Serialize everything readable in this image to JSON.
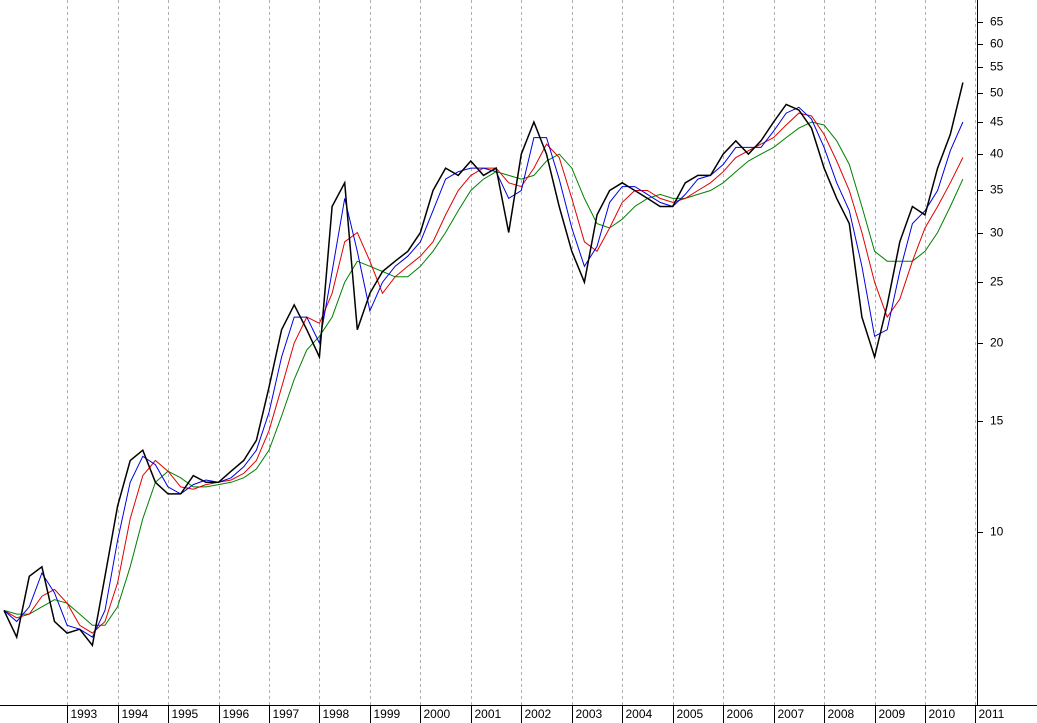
{
  "chart_data": {
    "type": "line",
    "x": [
      1991.75,
      1992,
      1992.25,
      1992.5,
      1992.75,
      1993,
      1993.25,
      1993.5,
      1993.75,
      1994,
      1994.25,
      1994.5,
      1994.75,
      1995,
      1995.25,
      1995.5,
      1995.75,
      1996,
      1996.25,
      1996.5,
      1996.75,
      1997,
      1997.25,
      1997.5,
      1997.75,
      1998,
      1998.25,
      1998.5,
      1998.75,
      1999,
      1999.25,
      1999.5,
      1999.75,
      2000,
      2000.25,
      2000.5,
      2000.75,
      2001,
      2001.25,
      2001.5,
      2001.75,
      2002,
      2002.25,
      2002.5,
      2002.75,
      2003,
      2003.25,
      2003.5,
      2003.75,
      2004,
      2004.25,
      2004.5,
      2004.75,
      2005,
      2005.25,
      2005.5,
      2005.75,
      2006,
      2006.25,
      2006.5,
      2006.75,
      2007,
      2007.25,
      2007.5,
      2007.75,
      2008,
      2008.25,
      2008.5,
      2008.75,
      2009,
      2009.25,
      2009.5,
      2009.75,
      2010,
      2010.25,
      2010.5,
      2010.75
    ],
    "series": [
      {
        "color": "#008000",
        "values": [
          7.5,
          7.4,
          7.4,
          7.6,
          7.8,
          7.7,
          7.4,
          7.1,
          7.1,
          7.6,
          8.8,
          10.5,
          12,
          12.5,
          12.2,
          11.8,
          11.8,
          11.9,
          12,
          12.2,
          12.6,
          13.5,
          15.3,
          17.5,
          19.5,
          20.5,
          22,
          25,
          27,
          26.5,
          26,
          25.5,
          25.5,
          26.5,
          28,
          30,
          32.5,
          35,
          36.5,
          37.5,
          37,
          36.5,
          37,
          39,
          40,
          38,
          34,
          31,
          30.5,
          31.5,
          33,
          34,
          34.5,
          34,
          34,
          34.5,
          35,
          36,
          37.5,
          39,
          40,
          41,
          42.5,
          44,
          45,
          44.5,
          42,
          38.5,
          33,
          28,
          27,
          27,
          27,
          28,
          30,
          33,
          36.5
        ]
      },
      {
        "color": "#e00000",
        "values": [
          7.5,
          7.3,
          7.4,
          7.9,
          8.1,
          7.7,
          7.1,
          6.9,
          7.2,
          8.3,
          10.5,
          12.3,
          13,
          12.5,
          11.8,
          11.7,
          11.9,
          12,
          12.1,
          12.4,
          13,
          14.5,
          17,
          20,
          22,
          21.5,
          24,
          29,
          30,
          27,
          24,
          25.5,
          26.5,
          27.5,
          29,
          32,
          35,
          37,
          38,
          38,
          36,
          35.5,
          38,
          41.5,
          39.5,
          34,
          29,
          28,
          30.5,
          33.5,
          35,
          35,
          34,
          33.5,
          34,
          35,
          36,
          37.5,
          39.5,
          40.5,
          41.5,
          42.5,
          44.5,
          46.5,
          46,
          43,
          39,
          35,
          30,
          25,
          22,
          23.5,
          27,
          30.5,
          33,
          36,
          39.5
        ]
      },
      {
        "color": "#0000e0",
        "values": [
          7.5,
          7.2,
          7.6,
          8.6,
          8.0,
          7.1,
          7.0,
          6.8,
          7.5,
          9.7,
          12,
          13.2,
          12.8,
          11.8,
          11.5,
          11.9,
          12.1,
          12,
          12.2,
          12.7,
          13.5,
          15.5,
          19,
          22,
          22,
          20,
          26,
          34,
          28,
          22.5,
          25,
          26.5,
          27.5,
          29,
          32.5,
          36.5,
          37.5,
          38,
          38,
          37.5,
          34,
          35,
          42.5,
          42.5,
          36.5,
          30.5,
          26.5,
          28.5,
          33.5,
          35.5,
          35.5,
          34.5,
          33.5,
          33,
          34.5,
          36.5,
          37,
          38.5,
          41,
          41,
          41,
          43.5,
          46.5,
          47.5,
          45.5,
          41,
          36,
          32.5,
          26.5,
          20.5,
          21,
          26,
          31,
          32.5,
          35,
          40.5,
          45
        ]
      },
      {
        "color": "#000000",
        "values": [
          7.5,
          6.8,
          8.5,
          8.8,
          7.2,
          6.9,
          7.0,
          6.6,
          8.5,
          11,
          13,
          13.5,
          12,
          11.5,
          11.5,
          12.3,
          12,
          12,
          12.5,
          13,
          14,
          17,
          21,
          23,
          21,
          19,
          33,
          36,
          21,
          24,
          26,
          27,
          28,
          30,
          35,
          38,
          37,
          39,
          37,
          38,
          30,
          40,
          45,
          40,
          33,
          28,
          25,
          32,
          35,
          36,
          35,
          34,
          33,
          33,
          36,
          37,
          37,
          40,
          42,
          40,
          42,
          45,
          48,
          47,
          44,
          38,
          34,
          31,
          22,
          19,
          23,
          29,
          33,
          32,
          38,
          43,
          52
        ]
      }
    ],
    "xlim": [
      1991.67,
      2011.03
    ],
    "xticks": [
      1993,
      1994,
      1995,
      1996,
      1997,
      1998,
      1999,
      2000,
      2001,
      2002,
      2003,
      2004,
      2005,
      2006,
      2007,
      2008,
      2009,
      2010,
      2011
    ],
    "ylim": [
      5.34,
      70.4
    ],
    "yticks": [
      10,
      15,
      20,
      25,
      30,
      35,
      40,
      45,
      50,
      55,
      60,
      65
    ],
    "ylog": true,
    "grid": true
  }
}
